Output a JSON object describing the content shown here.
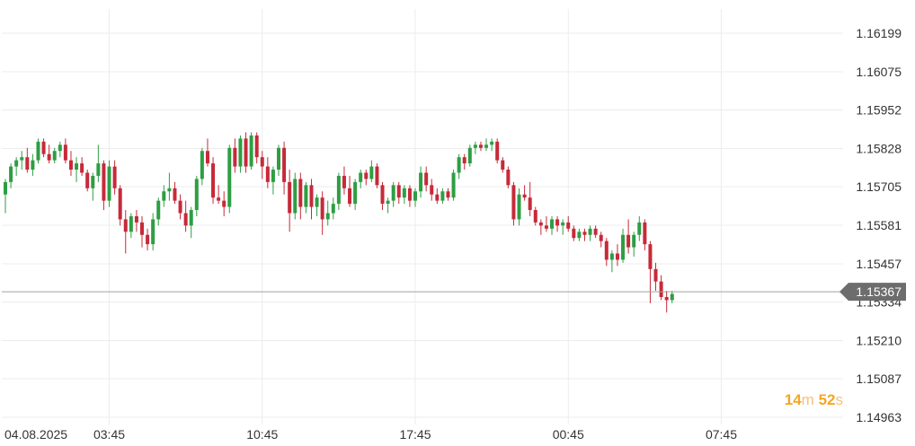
{
  "chart_data": {
    "type": "candlestick",
    "y_ticks": [
      "1.16199",
      "1.16075",
      "1.15952",
      "1.15828",
      "1.15705",
      "1.15581",
      "1.15457",
      "1.15334",
      "1.15210",
      "1.15087",
      "1.14963"
    ],
    "ylim": [
      1.14963,
      1.16199
    ],
    "x_ticks": [
      {
        "label": "04.08.2025",
        "index": 0
      },
      {
        "label": "03:45",
        "index": 19
      },
      {
        "label": "10:45",
        "index": 47
      },
      {
        "label": "17:45",
        "index": 75
      },
      {
        "label": "00:45",
        "index": 103
      },
      {
        "label": "07:45",
        "index": 131
      }
    ],
    "current_price": "1.15367",
    "grid": true,
    "colors": {
      "up": "#2e9e43",
      "down": "#c62a39",
      "current_line": "#a0a0a0",
      "badge": "#6d6d6d",
      "grid": "#ececec"
    },
    "candles": [
      [
        1.1568,
        1.1573,
        1.1562,
        1.1572
      ],
      [
        1.1572,
        1.1578,
        1.157,
        1.1577
      ],
      [
        1.1577,
        1.158,
        1.1574,
        1.1579
      ],
      [
        1.1579,
        1.1582,
        1.1576,
        1.158
      ],
      [
        1.158,
        1.1583,
        1.1575,
        1.1576
      ],
      [
        1.1576,
        1.1581,
        1.1574,
        1.1579
      ],
      [
        1.1579,
        1.1586,
        1.1578,
        1.1585
      ],
      [
        1.1585,
        1.1586,
        1.158,
        1.1581
      ],
      [
        1.1581,
        1.1584,
        1.1578,
        1.1579
      ],
      [
        1.1579,
        1.1583,
        1.1578,
        1.1582
      ],
      [
        1.1582,
        1.1585,
        1.158,
        1.1584
      ],
      [
        1.1584,
        1.1586,
        1.1578,
        1.1579
      ],
      [
        1.1579,
        1.1582,
        1.1574,
        1.1576
      ],
      [
        1.1576,
        1.158,
        1.1572,
        1.1578
      ],
      [
        1.1578,
        1.158,
        1.1574,
        1.1575
      ],
      [
        1.1575,
        1.1576,
        1.1569,
        1.157
      ],
      [
        1.157,
        1.1575,
        1.1566,
        1.1574
      ],
      [
        1.1574,
        1.1584,
        1.1572,
        1.1578
      ],
      [
        1.1578,
        1.1579,
        1.1563,
        1.1566
      ],
      [
        1.1566,
        1.1579,
        1.1564,
        1.1577
      ],
      [
        1.1577,
        1.1579,
        1.1568,
        1.157
      ],
      [
        1.157,
        1.1571,
        1.1558,
        1.156
      ],
      [
        1.156,
        1.1563,
        1.1549,
        1.1556
      ],
      [
        1.1556,
        1.1562,
        1.1554,
        1.1561
      ],
      [
        1.1561,
        1.1563,
        1.1556,
        1.1559
      ],
      [
        1.1559,
        1.1561,
        1.1551,
        1.1555
      ],
      [
        1.1555,
        1.1557,
        1.155,
        1.1552
      ],
      [
        1.1552,
        1.1562,
        1.155,
        1.156
      ],
      [
        1.156,
        1.1567,
        1.1558,
        1.1566
      ],
      [
        1.1566,
        1.1571,
        1.1564,
        1.1569
      ],
      [
        1.1569,
        1.1575,
        1.1566,
        1.157
      ],
      [
        1.157,
        1.1572,
        1.1565,
        1.1566
      ],
      [
        1.1566,
        1.1568,
        1.156,
        1.1562
      ],
      [
        1.1562,
        1.1566,
        1.1556,
        1.1558
      ],
      [
        1.1558,
        1.1564,
        1.1554,
        1.1563
      ],
      [
        1.1563,
        1.1574,
        1.1561,
        1.1573
      ],
      [
        1.1573,
        1.1583,
        1.1571,
        1.1582
      ],
      [
        1.1582,
        1.1586,
        1.1577,
        1.1578
      ],
      [
        1.1578,
        1.158,
        1.1565,
        1.1567
      ],
      [
        1.1567,
        1.1571,
        1.1565,
        1.1566
      ],
      [
        1.1566,
        1.1569,
        1.1561,
        1.1564
      ],
      [
        1.1564,
        1.1584,
        1.1562,
        1.1583
      ],
      [
        1.1583,
        1.1586,
        1.1575,
        1.1577
      ],
      [
        1.1577,
        1.1587,
        1.1575,
        1.1586
      ],
      [
        1.1586,
        1.1588,
        1.1575,
        1.1577
      ],
      [
        1.1577,
        1.1588,
        1.1576,
        1.1587
      ],
      [
        1.1587,
        1.1588,
        1.1578,
        1.158
      ],
      [
        1.158,
        1.1582,
        1.1573,
        1.1577
      ],
      [
        1.1577,
        1.158,
        1.157,
        1.1572
      ],
      [
        1.1572,
        1.1577,
        1.1568,
        1.1576
      ],
      [
        1.1576,
        1.1584,
        1.1574,
        1.1583
      ],
      [
        1.1583,
        1.1585,
        1.1568,
        1.1572
      ],
      [
        1.1572,
        1.1576,
        1.1556,
        1.1562
      ],
      [
        1.1562,
        1.1575,
        1.156,
        1.1573
      ],
      [
        1.1573,
        1.1575,
        1.156,
        1.1564
      ],
      [
        1.1564,
        1.1572,
        1.1562,
        1.1571
      ],
      [
        1.1571,
        1.1573,
        1.156,
        1.1564
      ],
      [
        1.1564,
        1.1568,
        1.1561,
        1.1567
      ],
      [
        1.1567,
        1.1569,
        1.1555,
        1.156
      ],
      [
        1.156,
        1.1566,
        1.1558,
        1.1562
      ],
      [
        1.1562,
        1.1567,
        1.156,
        1.1565
      ],
      [
        1.1565,
        1.1575,
        1.1563,
        1.1574
      ],
      [
        1.1574,
        1.1577,
        1.1568,
        1.157
      ],
      [
        1.157,
        1.1574,
        1.1564,
        1.1565
      ],
      [
        1.1565,
        1.1573,
        1.1563,
        1.1572
      ],
      [
        1.1572,
        1.1576,
        1.157,
        1.1575
      ],
      [
        1.1575,
        1.1576,
        1.1571,
        1.1573
      ],
      [
        1.1573,
        1.1579,
        1.1572,
        1.1577
      ],
      [
        1.1577,
        1.1578,
        1.157,
        1.1571
      ],
      [
        1.1571,
        1.1572,
        1.1563,
        1.1565
      ],
      [
        1.1565,
        1.1567,
        1.1562,
        1.1566
      ],
      [
        1.1566,
        1.1572,
        1.1564,
        1.1571
      ],
      [
        1.1571,
        1.1572,
        1.1565,
        1.1567
      ],
      [
        1.1567,
        1.1571,
        1.1565,
        1.157
      ],
      [
        1.157,
        1.1571,
        1.1564,
        1.1566
      ],
      [
        1.1566,
        1.157,
        1.1564,
        1.1569
      ],
      [
        1.1569,
        1.1577,
        1.1567,
        1.1575
      ],
      [
        1.1575,
        1.1577,
        1.1569,
        1.1571
      ],
      [
        1.1571,
        1.1573,
        1.1566,
        1.1568
      ],
      [
        1.1568,
        1.157,
        1.1565,
        1.1566
      ],
      [
        1.1566,
        1.157,
        1.1565,
        1.1569
      ],
      [
        1.1569,
        1.157,
        1.1566,
        1.1567
      ],
      [
        1.1567,
        1.1576,
        1.1566,
        1.1575
      ],
      [
        1.1575,
        1.1581,
        1.1573,
        1.158
      ],
      [
        1.158,
        1.1581,
        1.1576,
        1.1578
      ],
      [
        1.1578,
        1.1584,
        1.1577,
        1.1583
      ],
      [
        1.1583,
        1.1585,
        1.1581,
        1.1584
      ],
      [
        1.1584,
        1.1585,
        1.1582,
        1.1583
      ],
      [
        1.1583,
        1.1586,
        1.1582,
        1.1584
      ],
      [
        1.1584,
        1.1586,
        1.1582,
        1.1585
      ],
      [
        1.1585,
        1.1586,
        1.1578,
        1.1579
      ],
      [
        1.1579,
        1.158,
        1.1575,
        1.1576
      ],
      [
        1.1576,
        1.1577,
        1.157,
        1.1571
      ],
      [
        1.1571,
        1.1572,
        1.1558,
        1.156
      ],
      [
        1.156,
        1.157,
        1.1558,
        1.1568
      ],
      [
        1.1568,
        1.1571,
        1.1566,
        1.1567
      ],
      [
        1.1567,
        1.1572,
        1.1561,
        1.1563
      ],
      [
        1.1563,
        1.1564,
        1.1558,
        1.1559
      ],
      [
        1.1559,
        1.156,
        1.1555,
        1.1558
      ],
      [
        1.1558,
        1.1561,
        1.1556,
        1.1557
      ],
      [
        1.1557,
        1.1561,
        1.1555,
        1.156
      ],
      [
        1.156,
        1.1561,
        1.1556,
        1.1558
      ],
      [
        1.1558,
        1.156,
        1.1555,
        1.1559
      ],
      [
        1.1559,
        1.1561,
        1.1556,
        1.1557
      ],
      [
        1.1557,
        1.1558,
        1.1553,
        1.1554
      ],
      [
        1.1554,
        1.1557,
        1.1553,
        1.1556
      ],
      [
        1.1556,
        1.1557,
        1.1553,
        1.1555
      ],
      [
        1.1555,
        1.1558,
        1.1553,
        1.1557
      ],
      [
        1.1557,
        1.1558,
        1.1554,
        1.1555
      ],
      [
        1.1555,
        1.1556,
        1.1551,
        1.1553
      ],
      [
        1.1553,
        1.1554,
        1.1545,
        1.1547
      ],
      [
        1.1547,
        1.155,
        1.1543,
        1.1549
      ],
      [
        1.1549,
        1.1552,
        1.1545,
        1.1547
      ],
      [
        1.1547,
        1.1557,
        1.1546,
        1.1555
      ],
      [
        1.1555,
        1.156,
        1.1549,
        1.1551
      ],
      [
        1.1551,
        1.1556,
        1.1548,
        1.1555
      ],
      [
        1.1555,
        1.1561,
        1.1553,
        1.1559
      ],
      [
        1.1559,
        1.156,
        1.155,
        1.1552
      ],
      [
        1.1552,
        1.1553,
        1.1533,
        1.1544
      ],
      [
        1.1544,
        1.1546,
        1.1537,
        1.154
      ],
      [
        1.154,
        1.1542,
        1.1534,
        1.1535
      ],
      [
        1.1535,
        1.1537,
        1.153,
        1.1534
      ],
      [
        1.1534,
        1.1537,
        1.1533,
        1.1536
      ]
    ]
  },
  "timer": {
    "minutes": "14",
    "minutes_unit": "m",
    "seconds": "52",
    "seconds_unit": "s"
  }
}
